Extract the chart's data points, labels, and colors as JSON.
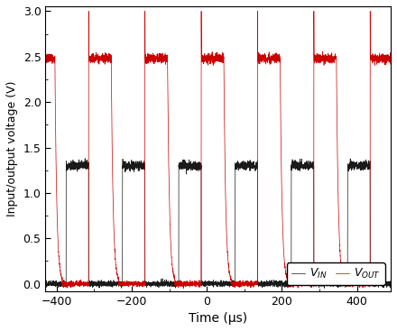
{
  "xlabel": "Time (μs)",
  "ylabel": "Input/output voltage (V)",
  "xlim": [
    -430,
    490
  ],
  "ylim": [
    -0.08,
    3.05
  ],
  "xticks": [
    -400,
    -200,
    0,
    200,
    400
  ],
  "yticks": [
    0.0,
    0.5,
    1.0,
    1.5,
    2.0,
    2.5,
    3.0
  ],
  "vin_color": "#1a1a1a",
  "vout_color": "#cc0000",
  "legend_labels": [
    "$V_{IN}$",
    "$V_{OUT}$"
  ],
  "period": 150,
  "vin_high_duration": 60,
  "vout_high_duration": 60,
  "vin_high": 1.3,
  "vin_low": 0.0,
  "vout_high": 2.48,
  "vout_spike_height": 3.0,
  "vout_low": 0.0,
  "vin_noise": 0.025,
  "vout_noise": 0.025,
  "low_noise": 0.015
}
